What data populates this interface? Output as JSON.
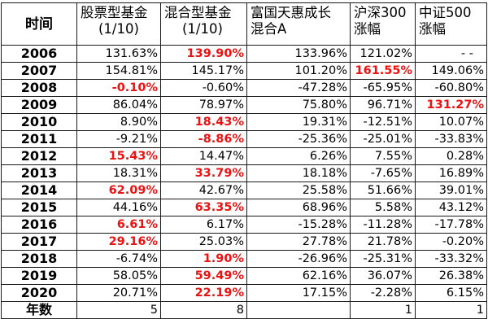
{
  "table": {
    "headers": [
      {
        "line1": "时间",
        "line2": ""
      },
      {
        "line1": "股票型基金",
        "line2": "(1/10)"
      },
      {
        "line1": "混合型基金",
        "line2": "(1/10)"
      },
      {
        "line1": "富国天惠成长",
        "line2": "混合A"
      },
      {
        "line1": "沪深300",
        "line2": "涨幅"
      },
      {
        "line1": "中证500",
        "line2": "涨幅"
      }
    ],
    "highlight_color": "#ee1111",
    "rows": [
      {
        "year": "2006",
        "cells": [
          "131.63%",
          "139.90%",
          "133.96%",
          "121.02%",
          "- -"
        ],
        "highlight": [
          false,
          true,
          false,
          false,
          false
        ]
      },
      {
        "year": "2007",
        "cells": [
          "154.81%",
          "145.17%",
          "101.20%",
          "161.55%",
          "149.06%"
        ],
        "highlight": [
          false,
          false,
          false,
          true,
          false
        ]
      },
      {
        "year": "2008",
        "cells": [
          "-0.10%",
          "-0.60%",
          "-47.28%",
          "-65.95%",
          "-60.80%"
        ],
        "highlight": [
          true,
          false,
          false,
          false,
          false
        ]
      },
      {
        "year": "2009",
        "cells": [
          "86.04%",
          "78.97%",
          "75.80%",
          "96.71%",
          "131.27%"
        ],
        "highlight": [
          false,
          false,
          false,
          false,
          true
        ]
      },
      {
        "year": "2010",
        "cells": [
          "8.90%",
          "18.43%",
          "19.31%",
          "-12.51%",
          "10.07%"
        ],
        "highlight": [
          false,
          true,
          false,
          false,
          false
        ]
      },
      {
        "year": "2011",
        "cells": [
          "-9.21%",
          "-8.86%",
          "-25.36%",
          "-25.01%",
          "-33.83%"
        ],
        "highlight": [
          false,
          true,
          false,
          false,
          false
        ]
      },
      {
        "year": "2012",
        "cells": [
          "15.43%",
          "14.47%",
          "6.26%",
          "7.55%",
          "0.28%"
        ],
        "highlight": [
          true,
          false,
          false,
          false,
          false
        ]
      },
      {
        "year": "2013",
        "cells": [
          "18.31%",
          "33.79%",
          "18.18%",
          "-7.65%",
          "16.89%"
        ],
        "highlight": [
          false,
          true,
          false,
          false,
          false
        ]
      },
      {
        "year": "2014",
        "cells": [
          "62.09%",
          "42.67%",
          "25.58%",
          "51.66%",
          "39.01%"
        ],
        "highlight": [
          true,
          false,
          false,
          false,
          false
        ]
      },
      {
        "year": "2015",
        "cells": [
          "44.16%",
          "63.35%",
          "68.96%",
          "5.58%",
          "43.12%"
        ],
        "highlight": [
          false,
          true,
          false,
          false,
          false
        ]
      },
      {
        "year": "2016",
        "cells": [
          "6.61%",
          "6.17%",
          "-15.28%",
          "-11.28%",
          "-17.78%"
        ],
        "highlight": [
          true,
          false,
          false,
          false,
          false
        ]
      },
      {
        "year": "2017",
        "cells": [
          "29.16%",
          "25.03%",
          "27.78%",
          "21.78%",
          "-0.20%"
        ],
        "highlight": [
          true,
          false,
          false,
          false,
          false
        ]
      },
      {
        "year": "2018",
        "cells": [
          "-6.74%",
          "1.90%",
          "-26.96%",
          "-25.31%",
          "-33.32%"
        ],
        "highlight": [
          false,
          true,
          false,
          false,
          false
        ]
      },
      {
        "year": "2019",
        "cells": [
          "58.05%",
          "59.49%",
          "62.16%",
          "36.07%",
          "26.38%"
        ],
        "highlight": [
          false,
          true,
          false,
          false,
          false
        ]
      },
      {
        "year": "2020",
        "cells": [
          "20.71%",
          "22.19%",
          "17.15%",
          "-2.28%",
          "6.15%"
        ],
        "highlight": [
          false,
          true,
          false,
          false,
          false
        ]
      }
    ],
    "count_row": {
      "label": "年数",
      "cells": [
        "5",
        "8",
        "",
        "1",
        "1"
      ]
    }
  }
}
